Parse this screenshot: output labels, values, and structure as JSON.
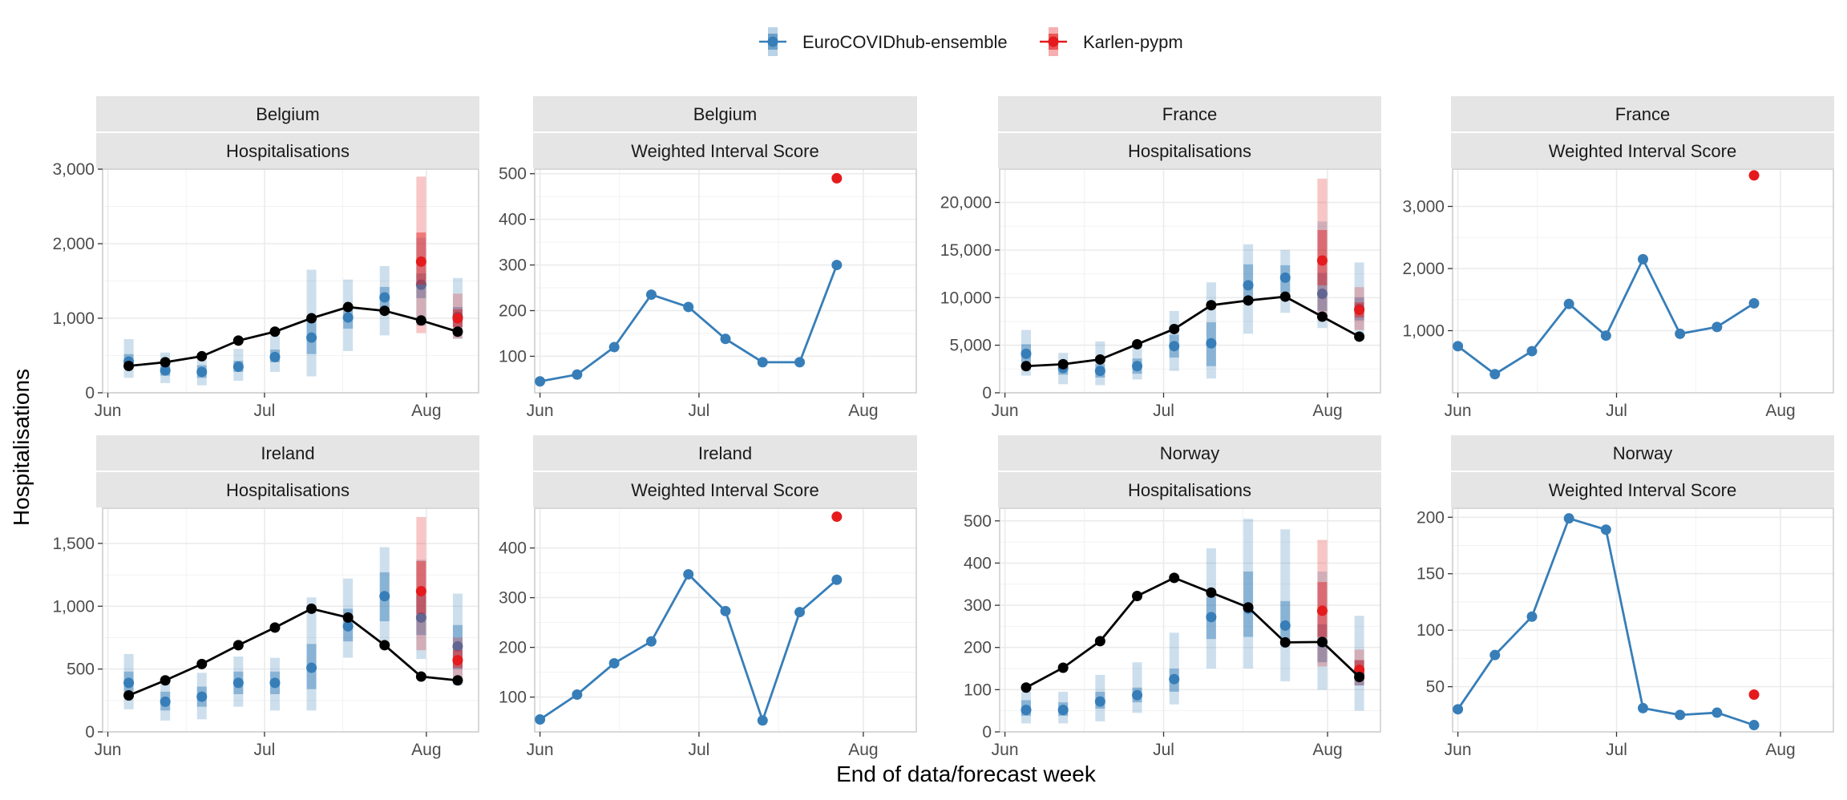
{
  "legend": [
    {
      "name": "EuroCOVIDhub-ensemble",
      "color": "#377eb8"
    },
    {
      "name": "Karlen-pypm",
      "color": "#e41a1c"
    }
  ],
  "axes": {
    "xlabel": "End of data/forecast week",
    "ylabel": "Hospitalisations"
  },
  "colors": {
    "observed": "#000000",
    "ensemble": "#377eb8",
    "karlen": "#e41a1c",
    "grid": "#ebebeb",
    "strip": "#e5e5e5"
  },
  "chart_data": [
    {
      "type": "line",
      "location": "Belgium",
      "metric": "Hospitalisations",
      "x_ticks": [
        "Jun",
        "Jul",
        "Aug"
      ],
      "x_range": [
        "2021-05-31",
        "2021-08-11"
      ],
      "ylim": [
        0,
        3000
      ],
      "y_ticks": [
        0,
        1000,
        2000,
        3000
      ],
      "y_tick_labels": [
        "0",
        "1,000",
        "2,000",
        "3,000"
      ],
      "observed": {
        "x": [
          "2021-06-05",
          "2021-06-12",
          "2021-06-19",
          "2021-06-26",
          "2021-07-03",
          "2021-07-10",
          "2021-07-17",
          "2021-07-24",
          "2021-07-31",
          "2021-08-07"
        ],
        "y": [
          360,
          410,
          490,
          700,
          820,
          1000,
          1150,
          1100,
          970,
          820
        ]
      },
      "series": [
        {
          "name": "EuroCOVIDhub-ensemble",
          "x": [
            "2021-06-05",
            "2021-06-12",
            "2021-06-19",
            "2021-06-26",
            "2021-07-03",
            "2021-07-10",
            "2021-07-17",
            "2021-07-24",
            "2021-07-31",
            "2021-08-07"
          ],
          "median": [
            420,
            300,
            280,
            350,
            480,
            740,
            1010,
            1280,
            1450,
            1020
          ],
          "q50": [
            [
              340,
              520
            ],
            [
              230,
              380
            ],
            [
              200,
              370
            ],
            [
              280,
              430
            ],
            [
              410,
              580
            ],
            [
              520,
              980
            ],
            [
              860,
              1170
            ],
            [
              1100,
              1420
            ],
            [
              1270,
              1600
            ],
            [
              880,
              1150
            ]
          ],
          "q90": [
            [
              200,
              720
            ],
            [
              130,
              540
            ],
            [
              100,
              500
            ],
            [
              160,
              590
            ],
            [
              280,
              760
            ],
            [
              220,
              1650
            ],
            [
              560,
              1520
            ],
            [
              770,
              1700
            ],
            [
              900,
              2080
            ],
            [
              720,
              1540
            ]
          ]
        },
        {
          "name": "Karlen-pypm",
          "x": [
            "2021-07-31",
            "2021-08-07"
          ],
          "median": [
            1760,
            1000
          ],
          "q50": [
            [
              1450,
              2150
            ],
            [
              880,
              1120
            ]
          ],
          "q90": [
            [
              800,
              2900
            ],
            [
              730,
              1330
            ]
          ]
        }
      ]
    },
    {
      "type": "line",
      "location": "Belgium",
      "metric": "Weighted Interval Score",
      "x_ticks": [
        "Jun",
        "Jul",
        "Aug"
      ],
      "x_range": [
        "2021-05-31",
        "2021-08-11"
      ],
      "ylim": [
        20,
        510
      ],
      "y_ticks": [
        100,
        200,
        300,
        400,
        500
      ],
      "y_tick_labels": [
        "100",
        "200",
        "300",
        "400",
        "500"
      ],
      "series": [
        {
          "name": "EuroCOVIDhub-ensemble",
          "x": [
            "2021-06-01",
            "2021-06-08",
            "2021-06-15",
            "2021-06-22",
            "2021-06-29",
            "2021-07-06",
            "2021-07-13",
            "2021-07-20",
            "2021-07-27"
          ],
          "y": [
            45,
            60,
            120,
            235,
            208,
            138,
            87,
            87,
            300
          ]
        },
        {
          "name": "Karlen-pypm",
          "x": [
            "2021-07-27"
          ],
          "y": [
            490
          ]
        }
      ]
    },
    {
      "type": "line",
      "location": "France",
      "metric": "Hospitalisations",
      "x_ticks": [
        "Jun",
        "Jul",
        "Aug"
      ],
      "x_range": [
        "2021-05-31",
        "2021-08-11"
      ],
      "ylim": [
        0,
        23500
      ],
      "y_ticks": [
        0,
        5000,
        10000,
        15000,
        20000
      ],
      "y_tick_labels": [
        "0",
        "5,000",
        "10,000",
        "15,000",
        "20,000"
      ],
      "observed": {
        "x": [
          "2021-06-05",
          "2021-06-12",
          "2021-06-19",
          "2021-06-26",
          "2021-07-03",
          "2021-07-10",
          "2021-07-17",
          "2021-07-24",
          "2021-07-31",
          "2021-08-07"
        ],
        "y": [
          2800,
          3000,
          3500,
          5100,
          6700,
          9200,
          9700,
          10100,
          8000,
          5900
        ]
      },
      "series": [
        {
          "name": "EuroCOVIDhub-ensemble",
          "x": [
            "2021-06-05",
            "2021-06-12",
            "2021-06-19",
            "2021-06-26",
            "2021-07-03",
            "2021-07-10",
            "2021-07-17",
            "2021-07-24",
            "2021-07-31",
            "2021-08-07"
          ],
          "median": [
            4100,
            2600,
            2300,
            2800,
            4900,
            5200,
            11300,
            12100,
            10400,
            8800
          ],
          "q50": [
            [
              3200,
              5100
            ],
            [
              1900,
              3300
            ],
            [
              1600,
              3000
            ],
            [
              2000,
              3600
            ],
            [
              3700,
              6100
            ],
            [
              2800,
              7400
            ],
            [
              9700,
              13500
            ],
            [
              10500,
              13400
            ],
            [
              8600,
              12600
            ],
            [
              7600,
              10000
            ]
          ],
          "q90": [
            [
              1800,
              6600
            ],
            [
              900,
              4200
            ],
            [
              800,
              5400
            ],
            [
              1400,
              4800
            ],
            [
              2300,
              8600
            ],
            [
              1500,
              11600
            ],
            [
              6200,
              15600
            ],
            [
              8400,
              15000
            ],
            [
              6800,
              18000
            ],
            [
              6000,
              13700
            ]
          ]
        },
        {
          "name": "Karlen-pypm",
          "x": [
            "2021-07-31",
            "2021-08-07"
          ],
          "median": [
            13900,
            8700
          ],
          "q50": [
            [
              11300,
              17100
            ],
            [
              7900,
              9500
            ]
          ],
          "q90": [
            [
              7900,
              22500
            ],
            [
              6600,
              11100
            ]
          ]
        }
      ]
    },
    {
      "type": "line",
      "location": "France",
      "metric": "Weighted Interval Score",
      "x_ticks": [
        "Jun",
        "Jul",
        "Aug"
      ],
      "x_range": [
        "2021-05-31",
        "2021-08-11"
      ],
      "ylim": [
        0,
        3600
      ],
      "y_ticks": [
        1000,
        2000,
        3000
      ],
      "y_tick_labels": [
        "1,000",
        "2,000",
        "3,000"
      ],
      "series": [
        {
          "name": "EuroCOVIDhub-ensemble",
          "x": [
            "2021-06-01",
            "2021-06-08",
            "2021-06-15",
            "2021-06-22",
            "2021-06-29",
            "2021-07-06",
            "2021-07-13",
            "2021-07-20",
            "2021-07-27"
          ],
          "y": [
            750,
            300,
            670,
            1430,
            920,
            2150,
            950,
            1060,
            1440
          ]
        },
        {
          "name": "Karlen-pypm",
          "x": [
            "2021-07-27"
          ],
          "y": [
            3500
          ]
        }
      ]
    },
    {
      "type": "line",
      "location": "Ireland",
      "metric": "Hospitalisations",
      "x_ticks": [
        "Jun",
        "Jul",
        "Aug"
      ],
      "x_range": [
        "2021-05-31",
        "2021-08-11"
      ],
      "ylim": [
        0,
        1780
      ],
      "y_ticks": [
        0,
        500,
        1000,
        1500
      ],
      "y_tick_labels": [
        "0",
        "500",
        "1,000",
        "1,500"
      ],
      "observed": {
        "x": [
          "2021-06-05",
          "2021-06-12",
          "2021-06-19",
          "2021-06-26",
          "2021-07-03",
          "2021-07-10",
          "2021-07-17",
          "2021-07-24",
          "2021-07-31",
          "2021-08-07"
        ],
        "y": [
          290,
          410,
          540,
          690,
          830,
          980,
          910,
          690,
          440,
          410
        ]
      },
      "series": [
        {
          "name": "EuroCOVIDhub-ensemble",
          "x": [
            "2021-06-05",
            "2021-06-12",
            "2021-06-19",
            "2021-06-26",
            "2021-07-03",
            "2021-07-10",
            "2021-07-17",
            "2021-07-24",
            "2021-07-31",
            "2021-08-07"
          ],
          "median": [
            390,
            240,
            280,
            390,
            390,
            510,
            840,
            1080,
            910,
            680
          ],
          "q50": [
            [
              300,
              480
            ],
            [
              170,
              320
            ],
            [
              200,
              360
            ],
            [
              300,
              480
            ],
            [
              300,
              480
            ],
            [
              340,
              700
            ],
            [
              720,
              980
            ],
            [
              880,
              1270
            ],
            [
              770,
              1090
            ],
            [
              500,
              850
            ]
          ],
          "q90": [
            [
              180,
              620
            ],
            [
              90,
              420
            ],
            [
              100,
              470
            ],
            [
              200,
              600
            ],
            [
              170,
              590
            ],
            [
              170,
              1070
            ],
            [
              590,
              1220
            ],
            [
              690,
              1470
            ],
            [
              580,
              1370
            ],
            [
              370,
              1100
            ]
          ]
        },
        {
          "name": "Karlen-pypm",
          "x": [
            "2021-07-31",
            "2021-08-07"
          ],
          "median": [
            1120,
            570
          ],
          "q50": [
            [
              940,
              1360
            ],
            [
              510,
              650
            ]
          ],
          "q90": [
            [
              650,
              1710
            ],
            [
              430,
              750
            ]
          ]
        }
      ]
    },
    {
      "type": "line",
      "location": "Ireland",
      "metric": "Weighted Interval Score",
      "x_ticks": [
        "Jun",
        "Jul",
        "Aug"
      ],
      "x_range": [
        "2021-05-31",
        "2021-08-11"
      ],
      "ylim": [
        30,
        480
      ],
      "y_ticks": [
        100,
        200,
        300,
        400
      ],
      "y_tick_labels": [
        "100",
        "200",
        "300",
        "400"
      ],
      "series": [
        {
          "name": "EuroCOVIDhub-ensemble",
          "x": [
            "2021-06-01",
            "2021-06-08",
            "2021-06-15",
            "2021-06-22",
            "2021-06-29",
            "2021-07-06",
            "2021-07-13",
            "2021-07-20",
            "2021-07-27"
          ],
          "y": [
            55,
            105,
            168,
            212,
            347,
            273,
            53,
            271,
            336
          ]
        },
        {
          "name": "Karlen-pypm",
          "x": [
            "2021-07-27"
          ],
          "y": [
            463
          ]
        }
      ]
    },
    {
      "type": "line",
      "location": "Norway",
      "metric": "Hospitalisations",
      "x_ticks": [
        "Jun",
        "Jul",
        "Aug"
      ],
      "x_range": [
        "2021-05-31",
        "2021-08-11"
      ],
      "ylim": [
        0,
        530
      ],
      "y_ticks": [
        0,
        100,
        200,
        300,
        400,
        500
      ],
      "y_tick_labels": [
        "0",
        "100",
        "200",
        "300",
        "400",
        "500"
      ],
      "observed": {
        "x": [
          "2021-06-05",
          "2021-06-12",
          "2021-06-19",
          "2021-06-26",
          "2021-07-03",
          "2021-07-10",
          "2021-07-17",
          "2021-07-24",
          "2021-07-31",
          "2021-08-07"
        ],
        "y": [
          105,
          152,
          215,
          322,
          365,
          330,
          295,
          212,
          213,
          130
        ]
      },
      "series": [
        {
          "name": "EuroCOVIDhub-ensemble",
          "x": [
            "2021-06-05",
            "2021-06-12",
            "2021-06-19",
            "2021-06-26",
            "2021-07-03",
            "2021-07-10",
            "2021-07-17",
            "2021-07-24",
            "2021-07-31",
            "2021-08-07"
          ],
          "median": [
            52,
            52,
            72,
            87,
            125,
            272,
            292,
            252,
            212,
            138
          ],
          "q50": [
            [
              38,
              75
            ],
            [
              38,
              70
            ],
            [
              55,
              95
            ],
            [
              70,
              105
            ],
            [
              95,
              150
            ],
            [
              220,
              320
            ],
            [
              225,
              380
            ],
            [
              205,
              310
            ],
            [
              165,
              255
            ],
            [
              110,
              170
            ]
          ],
          "q90": [
            [
              20,
              95
            ],
            [
              20,
              95
            ],
            [
              25,
              135
            ],
            [
              45,
              165
            ],
            [
              65,
              235
            ],
            [
              150,
              435
            ],
            [
              150,
              505
            ],
            [
              120,
              480
            ],
            [
              100,
              380
            ],
            [
              50,
              275
            ]
          ]
        },
        {
          "name": "Karlen-pypm",
          "x": [
            "2021-07-31",
            "2021-08-07"
          ],
          "median": [
            287,
            147
          ],
          "q50": [
            [
              225,
              355
            ],
            [
              125,
              170
            ]
          ],
          "q90": [
            [
              155,
              455
            ],
            [
              110,
              195
            ]
          ]
        }
      ]
    },
    {
      "type": "line",
      "location": "Norway",
      "metric": "Weighted Interval Score",
      "x_ticks": [
        "Jun",
        "Jul",
        "Aug"
      ],
      "x_range": [
        "2021-05-31",
        "2021-08-11"
      ],
      "ylim": [
        10,
        208
      ],
      "y_ticks": [
        50,
        100,
        150,
        200
      ],
      "y_tick_labels": [
        "50",
        "100",
        "150",
        "200"
      ],
      "series": [
        {
          "name": "EuroCOVIDhub-ensemble",
          "x": [
            "2021-06-01",
            "2021-06-08",
            "2021-06-15",
            "2021-06-22",
            "2021-06-29",
            "2021-07-06",
            "2021-07-13",
            "2021-07-20",
            "2021-07-27"
          ],
          "y": [
            30,
            78,
            112,
            199,
            189,
            31,
            25,
            27,
            16
          ]
        },
        {
          "name": "Karlen-pypm",
          "x": [
            "2021-07-27"
          ],
          "y": [
            43
          ]
        }
      ]
    }
  ]
}
